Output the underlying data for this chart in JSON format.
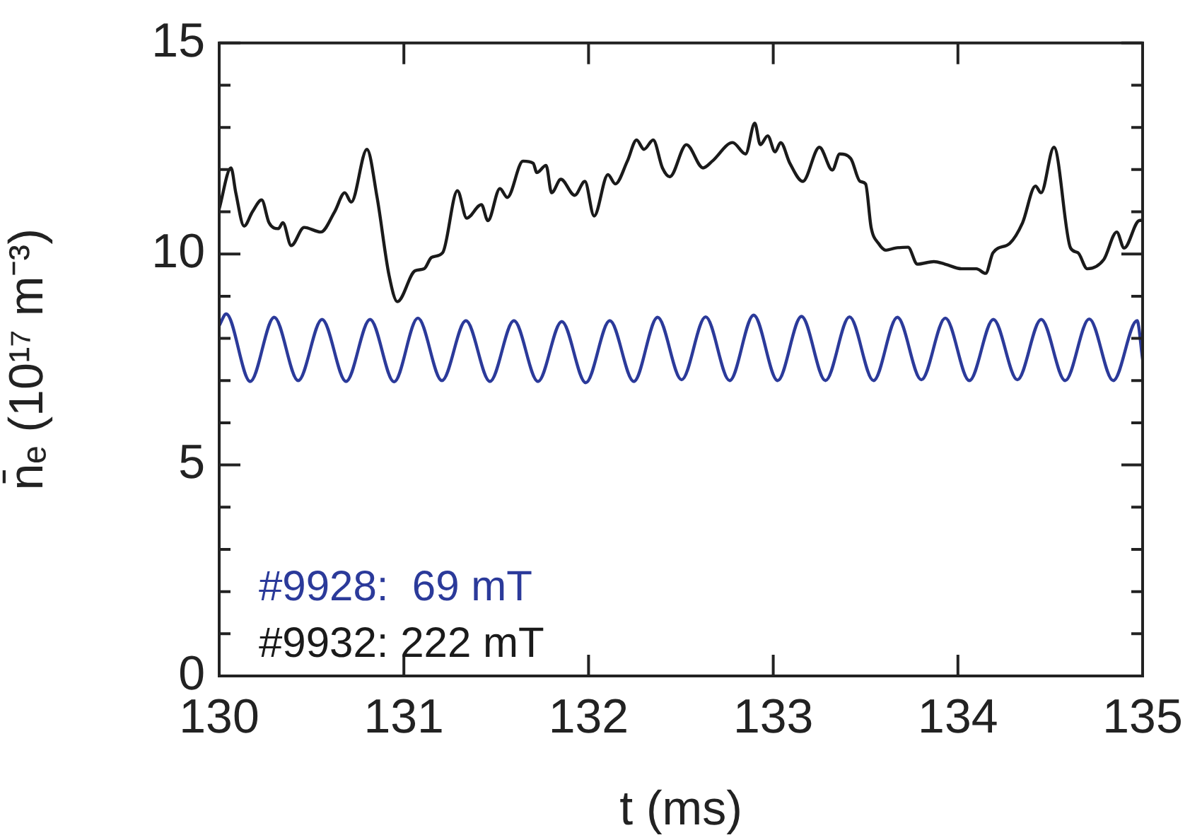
{
  "chart_data": {
    "type": "line",
    "xlabel": "t (ms)",
    "ylabel": "n̄ₑ (10¹⁷ m⁻³)",
    "xlim": [
      130,
      135
    ],
    "xticks": [
      130,
      131,
      132,
      133,
      134,
      135
    ],
    "ylim": [
      0,
      15
    ],
    "yticks": [
      0,
      {
        "value": 1,
        "label": null
      },
      {
        "value": 2,
        "label": null
      },
      {
        "value": 3,
        "label": null
      },
      {
        "value": 4,
        "label": null
      },
      5,
      {
        "value": 6,
        "label": null
      },
      {
        "value": 7,
        "label": null
      },
      {
        "value": 8,
        "label": null
      },
      {
        "value": 9,
        "label": null
      },
      10,
      {
        "value": 11,
        "label": null
      },
      {
        "value": 12,
        "label": null
      },
      {
        "value": 13,
        "label": null
      },
      {
        "value": 14,
        "label": null
      },
      15
    ],
    "grid": false,
    "legend": "bottom left",
    "marker": "none",
    "line_style": "solid",
    "series": [
      {
        "name": "#9928:  69 mT",
        "color": "#2b3a9a",
        "x": [
          130.0,
          130.038,
          130.168,
          130.298,
          130.428,
          130.557,
          130.687,
          130.817,
          130.947,
          131.076,
          131.206,
          131.336,
          131.466,
          131.596,
          131.726,
          131.855,
          131.985,
          132.115,
          132.245,
          132.374,
          132.504,
          132.634,
          132.764,
          132.894,
          133.024,
          133.153,
          133.283,
          133.413,
          133.543,
          133.672,
          133.802,
          133.932,
          134.062,
          134.192,
          134.322,
          134.451,
          134.581,
          134.711,
          134.841,
          134.97,
          135.0
        ],
        "values": [
          8.3,
          8.58,
          6.98,
          8.5,
          7.0,
          8.45,
          6.98,
          8.45,
          6.97,
          8.48,
          7.0,
          8.42,
          6.98,
          8.42,
          6.98,
          8.4,
          6.95,
          8.42,
          6.98,
          8.5,
          7.02,
          8.51,
          7.0,
          8.55,
          7.0,
          8.52,
          7.0,
          8.51,
          7.0,
          8.5,
          7.02,
          8.48,
          7.0,
          8.45,
          7.02,
          8.45,
          7.0,
          8.46,
          7.0,
          8.42,
          7.5
        ]
      },
      {
        "name": "#9932: 222 mT",
        "color": "#1a1a1a",
        "x": [
          130.0,
          130.064,
          130.09,
          130.135,
          130.18,
          130.23,
          130.27,
          130.32,
          130.345,
          130.39,
          130.46,
          130.55,
          130.625,
          130.68,
          130.715,
          130.8,
          130.855,
          130.92,
          130.965,
          131.06,
          131.11,
          131.15,
          131.21,
          131.29,
          131.34,
          131.42,
          131.455,
          131.52,
          131.56,
          131.645,
          131.7,
          131.72,
          131.77,
          131.8,
          131.85,
          131.925,
          131.98,
          132.03,
          132.105,
          132.145,
          132.21,
          132.26,
          132.3,
          132.35,
          132.4,
          132.44,
          132.53,
          132.62,
          132.67,
          132.78,
          132.85,
          132.9,
          132.93,
          132.97,
          133.01,
          133.04,
          133.09,
          133.16,
          133.25,
          133.32,
          133.36,
          133.42,
          133.47,
          133.5,
          133.53,
          133.57,
          133.61,
          133.66,
          133.73,
          133.78,
          133.87,
          133.93,
          134.02,
          134.1,
          134.15,
          134.19,
          134.28,
          134.35,
          134.42,
          134.45,
          134.52,
          134.61,
          134.65,
          134.7,
          134.79,
          134.86,
          134.9,
          134.98,
          135.0
        ],
        "values": [
          11.07,
          12.04,
          11.45,
          10.66,
          11.0,
          11.28,
          10.74,
          10.6,
          10.74,
          10.2,
          10.63,
          10.52,
          11.0,
          11.45,
          11.23,
          12.48,
          11.34,
          9.49,
          8.87,
          9.6,
          9.65,
          9.92,
          10.03,
          11.5,
          10.85,
          11.17,
          10.79,
          11.55,
          11.34,
          12.2,
          12.15,
          11.93,
          12.1,
          11.45,
          11.77,
          11.39,
          11.72,
          10.9,
          11.88,
          11.66,
          12.2,
          12.7,
          12.48,
          12.7,
          12.04,
          11.83,
          12.59,
          12.04,
          12.2,
          12.64,
          12.37,
          13.1,
          12.59,
          12.8,
          12.42,
          12.64,
          12.15,
          11.72,
          12.53,
          11.99,
          12.37,
          12.26,
          11.72,
          11.66,
          10.63,
          10.25,
          10.09,
          10.14,
          10.16,
          9.76,
          9.82,
          9.76,
          9.65,
          9.65,
          9.54,
          10.03,
          10.25,
          10.74,
          11.61,
          11.45,
          12.53,
          10.14,
          10.03,
          9.65,
          9.87,
          10.52,
          10.14,
          10.79,
          10.8
        ]
      }
    ]
  }
}
